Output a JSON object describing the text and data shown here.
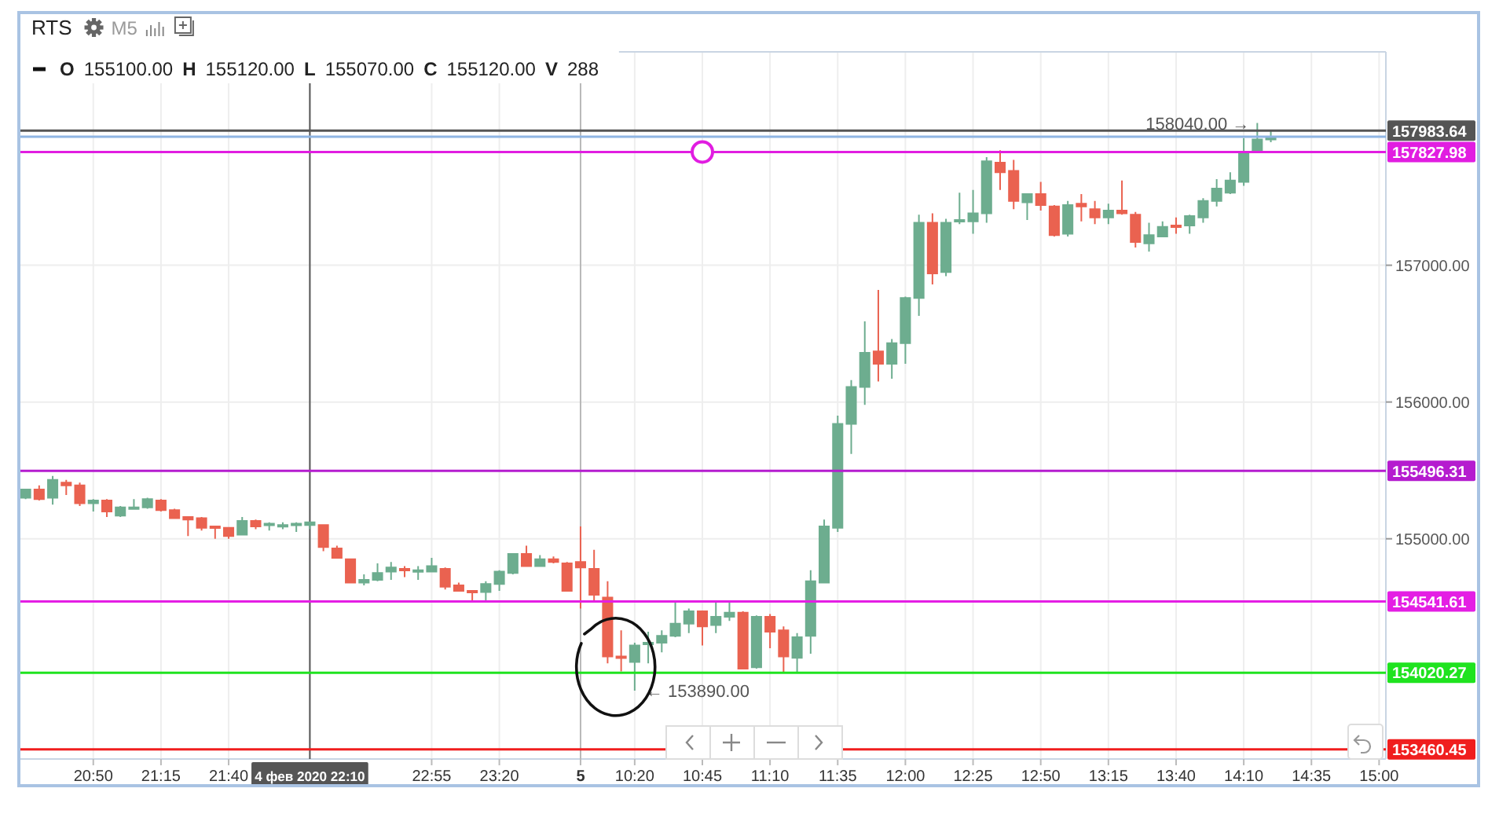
{
  "chart_data": {
    "type": "candlestick",
    "title": "RTS",
    "subtitle": "M5",
    "categories": [
      null,
      null,
      null,
      null,
      null,
      "20:50",
      null,
      null,
      null,
      null,
      "21:15",
      null,
      null,
      null,
      null,
      "21:40",
      null,
      null,
      null,
      null,
      null,
      "4 фев 2020 22:10",
      null,
      null,
      null,
      null,
      null,
      null,
      null,
      null,
      "22:55",
      null,
      null,
      null,
      null,
      "23:20",
      null,
      null,
      null,
      null,
      null,
      "5",
      null,
      null,
      null,
      "10:20",
      null,
      null,
      null,
      null,
      "10:45",
      null,
      null,
      null,
      null,
      "11:10",
      null,
      null,
      null,
      null,
      "11:35",
      null,
      null,
      null,
      null,
      "12:00",
      null,
      null,
      null,
      null,
      "12:25",
      null,
      null,
      null,
      null,
      "12:50",
      null,
      null,
      null,
      null,
      "13:15",
      null,
      null,
      null,
      null,
      "13:40",
      null,
      null,
      null,
      null,
      "14:10",
      null,
      null,
      null,
      null,
      "14:35",
      null,
      null,
      null,
      null,
      "15:00"
    ],
    "ohlc": [
      [
        155300,
        155360,
        155290,
        155360
      ],
      [
        155360,
        155390,
        155280,
        155290
      ],
      [
        155300,
        155460,
        155250,
        155430
      ],
      [
        155410,
        155430,
        155320,
        155390
      ],
      [
        155390,
        155410,
        155240,
        155260
      ],
      [
        155260,
        155290,
        155200,
        155280
      ],
      [
        155280,
        155290,
        155160,
        155200
      ],
      [
        155170,
        155240,
        155160,
        155230
      ],
      [
        155220,
        155290,
        155220,
        155230
      ],
      [
        155230,
        155300,
        155220,
        155290
      ],
      [
        155280,
        155290,
        155200,
        155210
      ],
      [
        155210,
        155220,
        155150,
        155150
      ],
      [
        155160,
        155160,
        155020,
        155140
      ],
      [
        155150,
        155160,
        155060,
        155080
      ],
      [
        155090,
        155090,
        155000,
        155080
      ],
      [
        155080,
        155080,
        155000,
        155020
      ],
      [
        155030,
        155160,
        155030,
        155130
      ],
      [
        155130,
        155140,
        155070,
        155090
      ],
      [
        155100,
        155120,
        155060,
        155110
      ],
      [
        155090,
        155120,
        155070,
        155100
      ],
      [
        155100,
        155120,
        155050,
        155110
      ],
      [
        155100,
        155120,
        155070,
        155120
      ],
      [
        155100,
        155100,
        154910,
        154940
      ],
      [
        154930,
        154950,
        154860,
        154860
      ],
      [
        154850,
        154850,
        154680,
        154680
      ],
      [
        154680,
        154740,
        154660,
        154700
      ],
      [
        154700,
        154820,
        154690,
        154750
      ],
      [
        154760,
        154830,
        154700,
        154790
      ],
      [
        154780,
        154800,
        154720,
        154770
      ],
      [
        154760,
        154800,
        154700,
        154770
      ],
      [
        154760,
        154860,
        154760,
        154800
      ],
      [
        154780,
        154790,
        154630,
        154650
      ],
      [
        154660,
        154680,
        154620,
        154620
      ],
      [
        154620,
        154620,
        154540,
        154610
      ],
      [
        154610,
        154690,
        154540,
        154670
      ],
      [
        154670,
        154770,
        154620,
        154760
      ],
      [
        154750,
        154890,
        154740,
        154890
      ],
      [
        154890,
        154950,
        154800,
        154800
      ],
      [
        154800,
        154880,
        154800,
        154850
      ],
      [
        154850,
        154870,
        154820,
        154830
      ],
      [
        154820,
        154830,
        154620,
        154620
      ],
      [
        154830,
        155090,
        154490,
        154790
      ],
      [
        154780,
        154920,
        154550,
        154590
      ],
      [
        154570,
        154690,
        154090,
        154140
      ],
      [
        154140,
        154330,
        154030,
        154130
      ],
      [
        154100,
        154240,
        153890,
        154220
      ],
      [
        154230,
        154320,
        154090,
        154240
      ],
      [
        154240,
        154330,
        154170,
        154290
      ],
      [
        154290,
        154540,
        154280,
        154380
      ],
      [
        154380,
        154490,
        154310,
        154470
      ],
      [
        154470,
        154470,
        154220,
        154360
      ],
      [
        154370,
        154540,
        154310,
        154430
      ],
      [
        154430,
        154540,
        154400,
        154460
      ],
      [
        154460,
        154470,
        154050,
        154050
      ],
      [
        154060,
        154440,
        154050,
        154430
      ],
      [
        154430,
        154450,
        154200,
        154320
      ],
      [
        154330,
        154360,
        154020,
        154140
      ],
      [
        154130,
        154310,
        154020,
        154280
      ],
      [
        154290,
        154770,
        154160,
        154690
      ],
      [
        154680,
        155140,
        154680,
        155090
      ],
      [
        155080,
        155900,
        155050,
        155840
      ],
      [
        155840,
        156160,
        155620,
        156110
      ],
      [
        156110,
        156590,
        155980,
        156360
      ],
      [
        156370,
        156820,
        156150,
        156280
      ],
      [
        156280,
        156460,
        156170,
        156430
      ],
      [
        156430,
        156770,
        156280,
        156760
      ],
      [
        156760,
        157370,
        156630,
        157310
      ],
      [
        157310,
        157380,
        156860,
        156940
      ],
      [
        156950,
        157340,
        156920,
        157310
      ],
      [
        157320,
        157530,
        157300,
        157330
      ],
      [
        157320,
        157550,
        157230,
        157380
      ],
      [
        157380,
        157790,
        157310,
        157760
      ],
      [
        157750,
        157840,
        157550,
        157680
      ],
      [
        157690,
        157770,
        157410,
        157470
      ],
      [
        157460,
        157520,
        157330,
        157520
      ],
      [
        157520,
        157610,
        157400,
        157440
      ],
      [
        157430,
        157440,
        157210,
        157220
      ],
      [
        157230,
        157470,
        157210,
        157440
      ],
      [
        157450,
        157520,
        157320,
        157430
      ],
      [
        157410,
        157470,
        157300,
        157350
      ],
      [
        157350,
        157450,
        157300,
        157400
      ],
      [
        157400,
        157620,
        157370,
        157380
      ],
      [
        157370,
        157390,
        157130,
        157170
      ],
      [
        157160,
        157310,
        157100,
        157220
      ],
      [
        157210,
        157320,
        157210,
        157280
      ],
      [
        157290,
        157350,
        157230,
        157280
      ],
      [
        157290,
        157370,
        157230,
        157360
      ],
      [
        157350,
        157490,
        157310,
        157470
      ],
      [
        157470,
        157630,
        157430,
        157560
      ],
      [
        157530,
        157680,
        157520,
        157620
      ],
      [
        157610,
        157930,
        157580,
        157830
      ],
      [
        157830,
        158040,
        157820,
        157920
      ],
      [
        157920,
        157990,
        157900,
        157940
      ],
      null,
      null,
      null,
      null,
      null,
      null,
      null,
      null
    ],
    "colors": [
      "#6dad8f",
      "#ea6250",
      "#6dad8f",
      "#ea6250",
      "#ea6250",
      "#6dad8f",
      "#ea6250",
      "#6dad8f",
      "#6dad8f",
      "#6dad8f",
      "#ea6250",
      "#ea6250",
      "#ea6250",
      "#ea6250",
      "#ea6250",
      "#ea6250",
      "#6dad8f",
      "#ea6250",
      "#6dad8f",
      "#6dad8f",
      "#6dad8f",
      "#6dad8f",
      "#ea6250",
      "#ea6250",
      "#ea6250",
      "#6dad8f",
      "#6dad8f",
      "#6dad8f",
      "#ea6250",
      "#6dad8f",
      "#6dad8f",
      "#ea6250",
      "#ea6250",
      "#ea6250",
      "#6dad8f",
      "#6dad8f",
      "#6dad8f",
      "#ea6250",
      "#6dad8f",
      "#ea6250",
      "#ea6250",
      "#ea6250",
      "#ea6250",
      "#ea6250",
      "#ea6250",
      "#6dad8f",
      "#6dad8f",
      "#6dad8f",
      "#6dad8f",
      "#6dad8f",
      "#ea6250",
      "#6dad8f",
      "#6dad8f",
      "#ea6250",
      "#6dad8f",
      "#ea6250",
      "#ea6250",
      "#6dad8f",
      "#6dad8f",
      "#6dad8f",
      "#6dad8f",
      "#6dad8f",
      "#6dad8f",
      "#ea6250",
      "#6dad8f",
      "#6dad8f",
      "#6dad8f",
      "#ea6250",
      "#6dad8f",
      "#6dad8f",
      "#6dad8f",
      "#6dad8f",
      "#ea6250",
      "#ea6250",
      "#6dad8f",
      "#ea6250",
      "#ea6250",
      "#6dad8f",
      "#ea6250",
      "#ea6250",
      "#6dad8f",
      "#ea6250",
      "#ea6250",
      "#6dad8f",
      "#6dad8f",
      "#ea6250",
      "#6dad8f",
      "#6dad8f",
      "#6dad8f",
      "#6dad8f",
      "#6dad8f",
      "#6dad8f",
      "#6dad8f",
      null,
      null,
      null,
      null,
      null,
      null,
      null,
      null
    ],
    "ylim": [
      153390,
      158560
    ],
    "yticks": [
      {
        "value": 155000,
        "label": "155000.00"
      },
      {
        "value": 156000,
        "label": "156000.00"
      },
      {
        "value": 157000,
        "label": "157000.00"
      }
    ],
    "grid": true,
    "ref_lines": [
      {
        "axis": "y",
        "value": 157983.64,
        "label": "157983.64",
        "color": "#555555"
      },
      {
        "axis": "y",
        "value": 157940,
        "color": "#8fb5e3"
      },
      {
        "axis": "y",
        "value": 157827.98,
        "label": "157827.98",
        "color": "#e11de1"
      },
      {
        "axis": "y",
        "value": 155496.31,
        "label": "155496.31",
        "color": "#b51ccf"
      },
      {
        "axis": "y",
        "value": 154541.61,
        "label": "154541.61",
        "color": "#e41ee4"
      },
      {
        "axis": "y",
        "value": 154020.27,
        "label": "154020.27",
        "color": "#1fe31f"
      },
      {
        "axis": "y",
        "value": 153460.45,
        "label": "153460.45",
        "color": "#f01e1e"
      },
      {
        "axis": "x",
        "value": "4 фев 2020 22:10",
        "color": "#555555"
      },
      {
        "axis": "x",
        "value": "5"
      }
    ],
    "annotations": [
      "O 155100.00 H 155120.00 L 155070.00 C 155120.00 V 288",
      {
        "text": "158040.00 →",
        "y": 158040
      },
      {
        "text": "← 153890.00",
        "x": "10:20",
        "y": 153890
      }
    ]
  }
}
